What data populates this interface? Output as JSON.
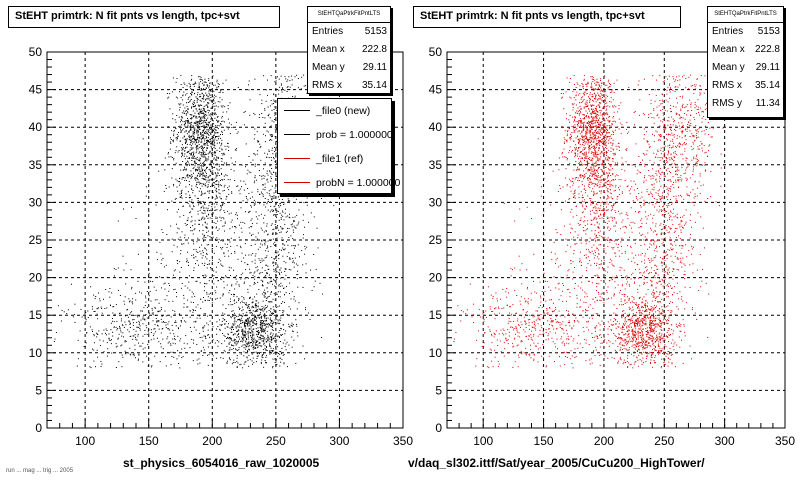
{
  "chart_data": [
    {
      "type": "scatter",
      "title": "StEHT primtrk: N fit pnts vs length, tpc+svt",
      "xlabel": "st_physics_6054016_raw_1020005",
      "ylabel": "",
      "xlim": [
        70,
        350
      ],
      "ylim": [
        0,
        50
      ],
      "xticks": [
        100,
        150,
        200,
        250,
        300,
        350
      ],
      "yticks": [
        0,
        5,
        10,
        15,
        20,
        25,
        30,
        35,
        40,
        45,
        50
      ],
      "grid": true,
      "marker_color": "#000000",
      "series_name": "_file0 (new)",
      "clusters": [
        {
          "x": 190,
          "y": 40,
          "sx": 10,
          "sy": 4,
          "n": 900
        },
        {
          "x": 195,
          "y": 33,
          "sx": 12,
          "sy": 5,
          "n": 500
        },
        {
          "x": 232,
          "y": 13,
          "sx": 12,
          "sy": 2.5,
          "n": 700
        },
        {
          "x": 250,
          "y": 28,
          "sx": 14,
          "sy": 12,
          "n": 900
        },
        {
          "x": 200,
          "y": 20,
          "sx": 28,
          "sy": 8,
          "n": 600
        },
        {
          "x": 140,
          "y": 13,
          "sx": 28,
          "sy": 3,
          "n": 450
        },
        {
          "x": 270,
          "y": 40,
          "sx": 14,
          "sy": 5,
          "n": 350
        }
      ],
      "stats": {
        "name": "StEHTQaPtrkFitPntLTS",
        "rows": [
          {
            "label": "Entries",
            "value": "5153"
          },
          {
            "label": "Mean x",
            "value": "222.8"
          },
          {
            "label": "Mean y",
            "value": "29.11"
          },
          {
            "label": "RMS x",
            "value": "35.14"
          }
        ]
      },
      "legend": [
        {
          "text": "_file0 (new)",
          "color": "#000000"
        },
        {
          "text": "prob = 1.000000",
          "color": "#000000"
        },
        {
          "text": "_file1 (ref)",
          "color": "#cc0000"
        },
        {
          "text": "probN = 1.000000",
          "color": "#cc0000"
        }
      ]
    },
    {
      "type": "scatter",
      "title": "StEHT primtrk: N fit pnts vs length, tpc+svt",
      "xlabel": "v/daq_sl302.ittf/Sat/year_2005/CuCu200_HighTower/",
      "ylabel": "",
      "xlim": [
        70,
        350
      ],
      "ylim": [
        0,
        50
      ],
      "xticks": [
        100,
        150,
        200,
        250,
        300,
        350
      ],
      "yticks": [
        0,
        5,
        10,
        15,
        20,
        25,
        30,
        35,
        40,
        45,
        50
      ],
      "grid": true,
      "marker_color": "#dd0000",
      "series_name": "_file1 (ref)",
      "clusters": [
        {
          "x": 190,
          "y": 40,
          "sx": 10,
          "sy": 4,
          "n": 900
        },
        {
          "x": 195,
          "y": 33,
          "sx": 12,
          "sy": 5,
          "n": 500
        },
        {
          "x": 232,
          "y": 13,
          "sx": 12,
          "sy": 2.5,
          "n": 700
        },
        {
          "x": 250,
          "y": 28,
          "sx": 14,
          "sy": 12,
          "n": 900
        },
        {
          "x": 200,
          "y": 20,
          "sx": 28,
          "sy": 8,
          "n": 600
        },
        {
          "x": 140,
          "y": 13,
          "sx": 28,
          "sy": 3,
          "n": 450
        },
        {
          "x": 270,
          "y": 40,
          "sx": 14,
          "sy": 5,
          "n": 350
        }
      ],
      "stats": {
        "name": "StEHTQaPtrkFitPntLTS",
        "rows": [
          {
            "label": "Entries",
            "value": "5153"
          },
          {
            "label": "Mean x",
            "value": "222.8"
          },
          {
            "label": "Mean y",
            "value": "29.11"
          },
          {
            "label": "RMS x",
            "value": "35.14"
          },
          {
            "label": "RMS y",
            "value": "11.34"
          }
        ]
      }
    }
  ],
  "footer_text": "run ... mag ... trig ... 2005"
}
